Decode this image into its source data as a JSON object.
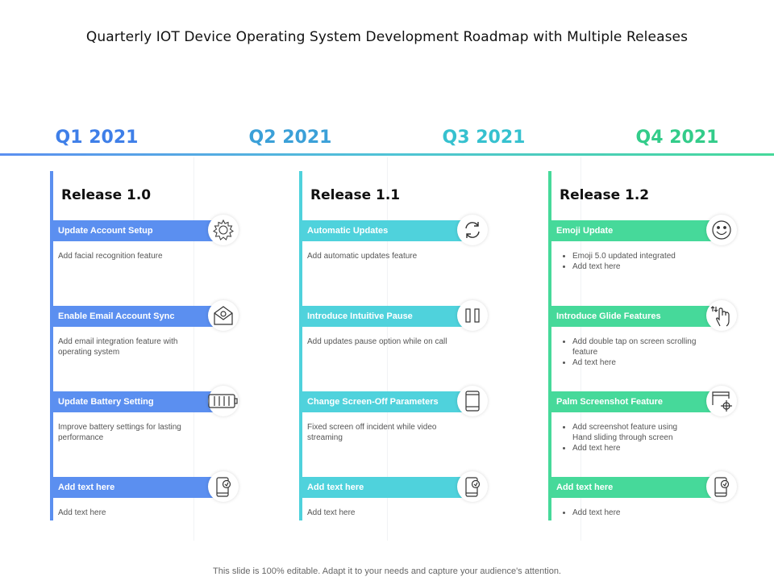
{
  "title": "Quarterly IOT Device Operating System Development Roadmap with Multiple Releases",
  "quarters": [
    {
      "label": "Q1 2021",
      "color": "#3f7fe8"
    },
    {
      "label": "Q2 2021",
      "color": "#3ba0d8"
    },
    {
      "label": "Q3 2021",
      "color": "#36c1cf"
    },
    {
      "label": "Q4 2021",
      "color": "#33cc8a"
    }
  ],
  "colors": {
    "release_1": "#5b8ff0",
    "release_2": "#4fd2dc",
    "release_3": "#46d99a"
  },
  "releases": [
    {
      "name": "Release 1.0",
      "features": [
        {
          "title": "Update Account Setup",
          "icon": "gear-icon",
          "desc": [
            "Add facial recognition feature"
          ],
          "bulleted": false
        },
        {
          "title": "Enable Email Account Sync",
          "icon": "email-icon",
          "desc": [
            "Add email integration feature with operating system"
          ],
          "bulleted": false
        },
        {
          "title": "Update Battery Setting",
          "icon": "battery-icon",
          "desc": [
            "Improve battery settings for lasting performance"
          ],
          "bulleted": false
        },
        {
          "title": "Add text here",
          "icon": "phone-icon",
          "desc": [
            "Add text here"
          ],
          "bulleted": false
        }
      ]
    },
    {
      "name": "Release 1.1",
      "features": [
        {
          "title": "Automatic Updates",
          "icon": "refresh-icon",
          "desc": [
            "Add automatic updates feature"
          ],
          "bulleted": false
        },
        {
          "title": "Introduce Intuitive Pause",
          "icon": "pause-icon",
          "desc": [
            "Add updates pause option while on call"
          ],
          "bulleted": false
        },
        {
          "title": "Change Screen-Off Parameters",
          "icon": "tablet-icon",
          "desc": [
            "Fixed screen off incident while video streaming"
          ],
          "bulleted": false
        },
        {
          "title": "Add text here",
          "icon": "phone-icon",
          "desc": [
            "Add text here"
          ],
          "bulleted": false
        }
      ]
    },
    {
      "name": "Release 1.2",
      "features": [
        {
          "title": "Emoji Update",
          "icon": "smiley-icon",
          "desc": [
            "Emoji 5.0 updated integrated",
            "Add text here"
          ],
          "bulleted": true
        },
        {
          "title": "Introduce Glide Features",
          "icon": "hand-gesture-icon",
          "desc": [
            "Add double tap on screen scrolling feature",
            "Ad text here"
          ],
          "bulleted": true
        },
        {
          "title": "Palm Screenshot Feature",
          "icon": "screenshot-icon",
          "desc": [
            "Add screenshot feature using Hand sliding through screen",
            "Add text here"
          ],
          "bulleted": true
        },
        {
          "title": "Add text here",
          "icon": "phone-icon",
          "desc": [
            "Add text here"
          ],
          "bulleted": true
        }
      ]
    }
  ],
  "footer": "This slide is 100% editable. Adapt it to your needs and capture your audience's attention."
}
